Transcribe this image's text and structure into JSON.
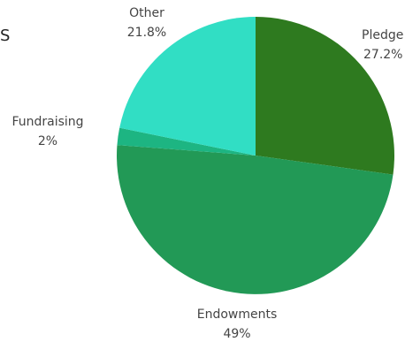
{
  "chart_data": {
    "type": "pie",
    "title": "S",
    "start_angle_deg": 0,
    "direction": "clockwise",
    "slices": [
      {
        "label": "Pledge",
        "pct_label": "27.2%",
        "value": 27.2,
        "color": "#2e7a1f"
      },
      {
        "label": "Endowments",
        "pct_label": "49%",
        "value": 49,
        "color": "#229956"
      },
      {
        "label": "Fundraising",
        "pct_label": "2%",
        "value": 2,
        "color": "#1db582"
      },
      {
        "label": "Other",
        "pct_label": "21.8%",
        "value": 21.8,
        "color": "#31dec4"
      }
    ]
  }
}
